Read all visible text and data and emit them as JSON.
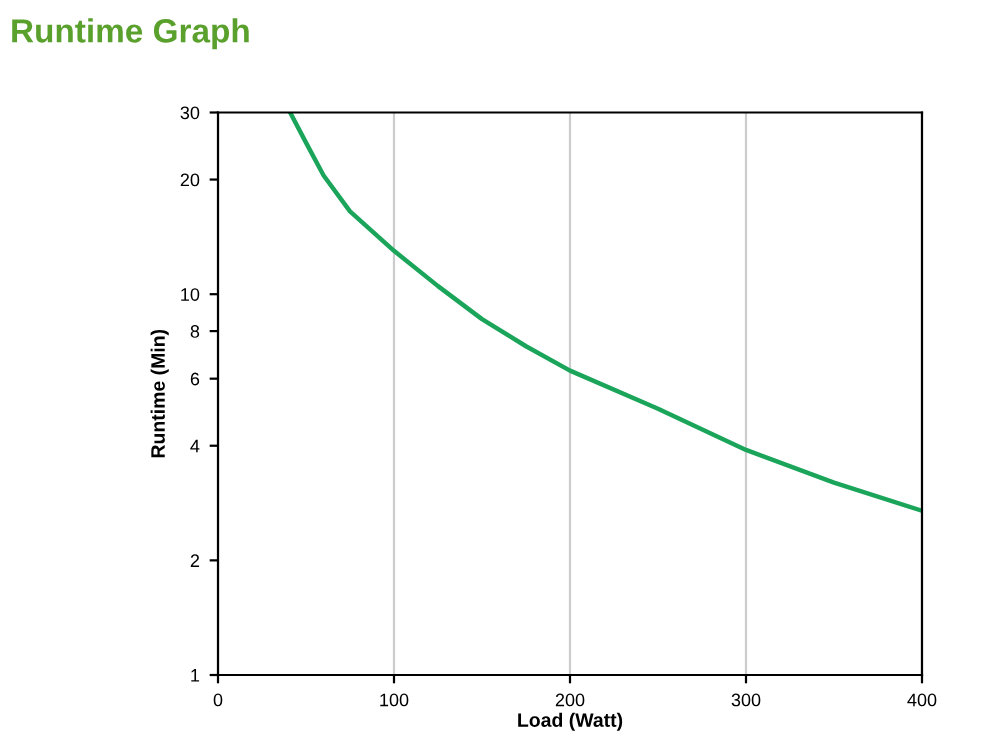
{
  "chart_data": {
    "type": "line",
    "title": "Runtime Graph",
    "xlabel": "Load (Watt)",
    "ylabel": "Runtime (Min)",
    "x": [
      41,
      50,
      60,
      75,
      100,
      125,
      150,
      175,
      200,
      250,
      300,
      350,
      400
    ],
    "series": [
      {
        "color": "#1aa55a",
        "values": [
          30,
          25,
          20.5,
          16.5,
          13,
          10.5,
          8.6,
          7.3,
          6.3,
          5.0,
          3.9,
          3.2,
          2.7
        ]
      }
    ],
    "xlim": [
      0,
      400
    ],
    "xticks": [
      0,
      100,
      200,
      300,
      400
    ],
    "ylim": [
      1,
      30
    ],
    "yticks": [
      1,
      2,
      4,
      6,
      8,
      10,
      20,
      30
    ],
    "log": "y",
    "grid": "x",
    "marker": "none",
    "line_style": "solid"
  }
}
